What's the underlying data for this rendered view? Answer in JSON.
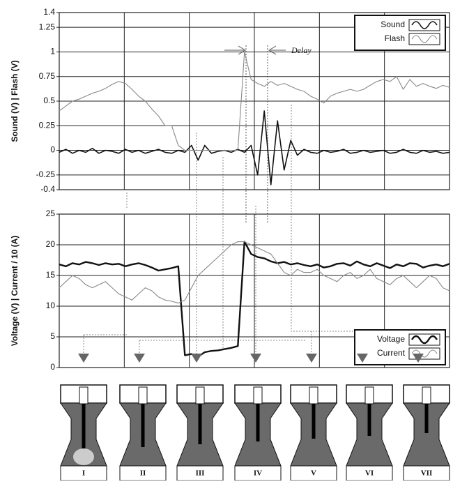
{
  "chart_data": [
    {
      "type": "line",
      "y_label": "Sound (V) | Flash (V)",
      "annotation": "Delay",
      "legend": "upper right",
      "ylim": [
        -0.4,
        1.4
      ],
      "yticks": [
        -0.4,
        -0.25,
        0,
        0.25,
        0.5,
        0.75,
        1,
        1.25,
        1.4
      ],
      "grid": true,
      "categories": [
        null,
        null,
        null,
        null,
        null,
        null,
        null,
        null,
        null,
        null,
        null,
        null,
        null,
        null,
        null,
        null,
        null,
        null,
        null,
        null,
        null,
        null,
        null,
        null,
        null,
        null,
        null,
        null,
        null,
        null,
        null,
        null,
        null,
        null,
        null,
        null,
        null,
        null,
        null,
        null,
        null,
        null,
        null,
        null,
        null,
        null,
        null,
        null,
        null,
        null,
        null,
        null,
        null,
        null,
        null,
        null,
        null,
        null,
        null,
        null
      ],
      "series": [
        {
          "name": "Sound",
          "color": "#111111",
          "width": 1.6,
          "values": [
            -0.02,
            0.01,
            -0.03,
            0.0,
            -0.02,
            0.02,
            -0.03,
            0.0,
            -0.01,
            -0.03,
            0.01,
            -0.02,
            0.0,
            -0.03,
            -0.01,
            0.01,
            -0.02,
            -0.03,
            0.0,
            -0.02,
            0.05,
            -0.1,
            0.05,
            -0.03,
            -0.01,
            0.0,
            -0.02,
            0.01,
            -0.02,
            0.05,
            -0.25,
            0.4,
            -0.35,
            0.3,
            -0.2,
            0.1,
            -0.05,
            0.01,
            -0.02,
            -0.03,
            0.0,
            -0.02,
            -0.01,
            0.01,
            -0.03,
            -0.02,
            0.0,
            -0.02,
            -0.01,
            0.0,
            -0.03,
            -0.02,
            0.01,
            -0.02,
            -0.03,
            0.0,
            -0.02,
            -0.01,
            -0.03,
            -0.02
          ]
        },
        {
          "name": "Flash",
          "color": "#888888",
          "width": 1.1,
          "values": [
            0.4,
            0.45,
            0.5,
            0.52,
            0.55,
            0.58,
            0.6,
            0.63,
            0.67,
            0.7,
            0.68,
            0.62,
            0.55,
            0.5,
            0.42,
            0.35,
            0.25,
            0.25,
            0.05,
            0,
            0,
            0,
            0,
            0,
            0,
            0,
            0,
            0,
            1.0,
            0.72,
            0.68,
            0.65,
            0.7,
            0.66,
            0.68,
            0.65,
            0.62,
            0.6,
            0.55,
            0.52,
            0.48,
            0.55,
            0.58,
            0.6,
            0.62,
            0.6,
            0.62,
            0.66,
            0.7,
            0.72,
            0.7,
            0.75,
            0.62,
            0.72,
            0.65,
            0.68,
            0.65,
            0.63,
            0.66,
            0.64
          ]
        }
      ]
    },
    {
      "type": "line",
      "y_label": "Voltage (V) | Current / 10 (A)",
      "legend": "lower right",
      "ylim": [
        0,
        25
      ],
      "yticks": [
        0,
        5,
        10,
        15,
        20,
        25
      ],
      "grid": true,
      "categories": [
        null,
        null,
        null,
        null,
        null,
        null,
        null,
        null,
        null,
        null,
        null,
        null,
        null,
        null,
        null,
        null,
        null,
        null,
        null,
        null,
        null,
        null,
        null,
        null,
        null,
        null,
        null,
        null,
        null,
        null,
        null,
        null,
        null,
        null,
        null,
        null,
        null,
        null,
        null,
        null,
        null,
        null,
        null,
        null,
        null,
        null,
        null,
        null,
        null,
        null,
        null,
        null,
        null,
        null,
        null,
        null,
        null,
        null,
        null,
        null
      ],
      "series": [
        {
          "name": "Voltage",
          "color": "#111111",
          "width": 2.4,
          "values": [
            16.8,
            16.5,
            17,
            16.8,
            17.2,
            17,
            16.7,
            17,
            16.8,
            16.9,
            16.5,
            16.8,
            17,
            16.7,
            16.3,
            15.8,
            16,
            16.2,
            16.5,
            2,
            2.2,
            1.8,
            2.5,
            2.7,
            2.8,
            3,
            3.2,
            3.5,
            20.5,
            18.5,
            18,
            17.8,
            17.3,
            17,
            17.2,
            16.8,
            17,
            16.7,
            16.5,
            16.8,
            16.3,
            16.5,
            16.9,
            17,
            16.6,
            17.3,
            16.8,
            16.5,
            17,
            16.6,
            16.2,
            16.8,
            16.5,
            17,
            16.9,
            16.3,
            16.6,
            16.8,
            16.5,
            16.9
          ]
        },
        {
          "name": "Current",
          "color": "#888888",
          "width": 1.1,
          "values": [
            13,
            14,
            15,
            14.5,
            13.5,
            13,
            13.5,
            14,
            13,
            12,
            11.5,
            11,
            12,
            13,
            12.5,
            11.5,
            11,
            10.8,
            10.5,
            11,
            13,
            15,
            16,
            17,
            18,
            19,
            20,
            20.5,
            20.5,
            20,
            19.5,
            19,
            18.5,
            17,
            15.5,
            15,
            16,
            15.5,
            15.5,
            16,
            15,
            14.5,
            14,
            15,
            15.5,
            14.5,
            15,
            16,
            14.5,
            14,
            13.5,
            14.5,
            15,
            14,
            13,
            14,
            15,
            14.5,
            13,
            12.5
          ]
        }
      ]
    }
  ],
  "stages": [
    "I",
    "II",
    "III",
    "IV",
    "V",
    "VI",
    "VII"
  ]
}
